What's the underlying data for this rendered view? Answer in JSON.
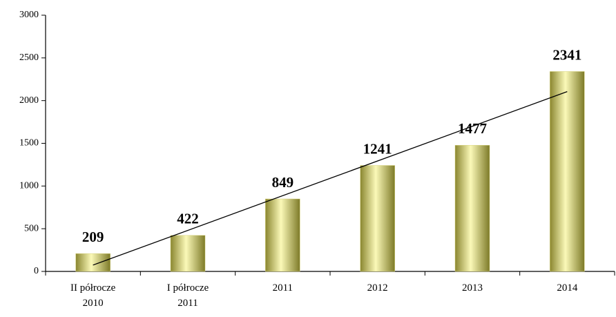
{
  "chart_data": {
    "type": "bar",
    "categories": [
      "II półrocze 2010",
      "I półrocze 2011",
      "2011",
      "2012",
      "2013",
      "2014"
    ],
    "values": [
      209,
      422,
      849,
      1241,
      1477,
      2341
    ],
    "color": "#d6d27a",
    "ylim": [
      0,
      3000
    ],
    "yticks": [
      0,
      500,
      1000,
      1500,
      2000,
      2500,
      3000
    ],
    "trendline": true,
    "grid": false
  }
}
